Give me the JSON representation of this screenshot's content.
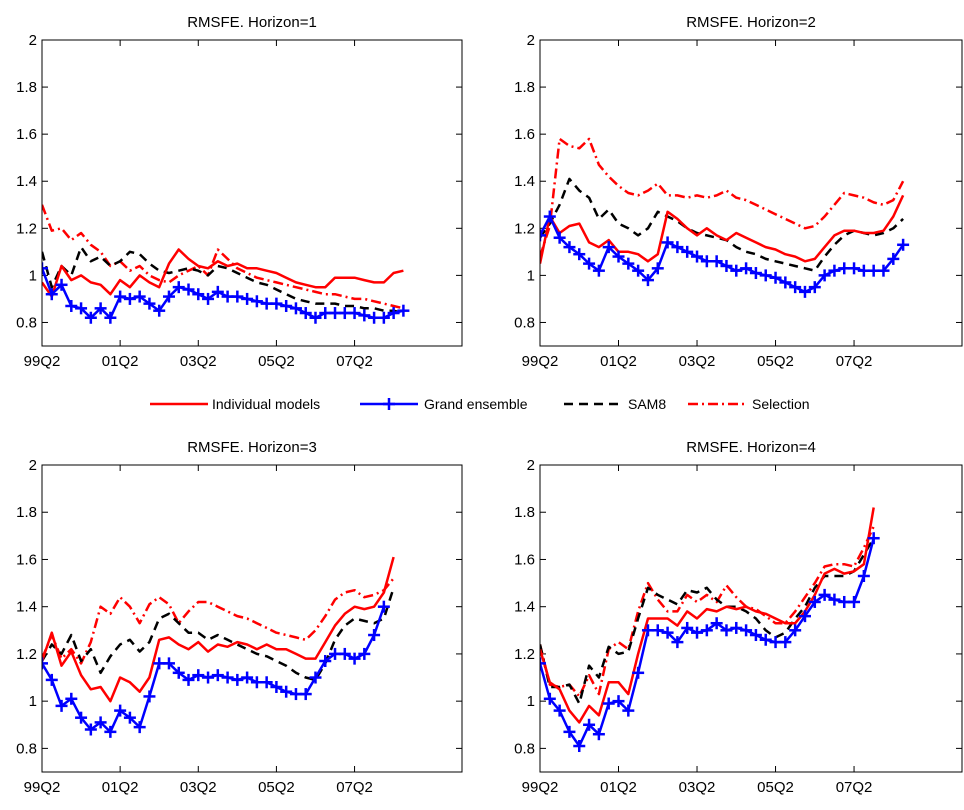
{
  "legend": {
    "items": [
      {
        "label": "Individual models",
        "color": "#ff0000",
        "style": "solid",
        "marker": "none"
      },
      {
        "label": "Grand ensemble",
        "color": "#0000ff",
        "style": "solid",
        "marker": "plus"
      },
      {
        "label": "SAM8",
        "color": "#000000",
        "style": "dashed",
        "marker": "none"
      },
      {
        "label": "Selection",
        "color": "#ff0000",
        "style": "dashdot",
        "marker": "none"
      }
    ]
  },
  "chart_data": [
    {
      "type": "line",
      "title": "RMSFE. Horizon=1",
      "xlabel": "",
      "ylabel": "",
      "xlim": [
        0,
        43
      ],
      "ylim": [
        0.7,
        2
      ],
      "yticks": [
        0.8,
        1,
        1.2,
        1.4,
        1.6,
        1.8,
        2
      ],
      "ytick_labels": [
        "0.8",
        "1",
        "1.2",
        "1.4",
        "1.6",
        "1.8",
        "2"
      ],
      "xticks": [
        0,
        8,
        16,
        24,
        32
      ],
      "xtick_labels": [
        "99Q2",
        "01Q2",
        "03Q2",
        "05Q2",
        "07Q2"
      ],
      "grid": false,
      "series": [
        {
          "name": "Individual models",
          "x_start": 0,
          "values": [
            0.97,
            0.91,
            1.04,
            0.98,
            1.0,
            0.97,
            0.96,
            0.92,
            0.98,
            0.95,
            1.0,
            0.97,
            0.95,
            1.05,
            1.11,
            1.07,
            1.04,
            1.03,
            1.06,
            1.04,
            1.05,
            1.03,
            1.03,
            1.02,
            1.01,
            0.99,
            0.97,
            0.96,
            0.95,
            0.95,
            0.99,
            0.99,
            0.99,
            0.98,
            0.97,
            0.97,
            1.01,
            1.02
          ]
        },
        {
          "name": "Grand ensemble",
          "x_start": 0,
          "values": [
            1.03,
            0.92,
            0.96,
            0.87,
            0.86,
            0.82,
            0.86,
            0.82,
            0.91,
            0.9,
            0.91,
            0.88,
            0.85,
            0.91,
            0.95,
            0.94,
            0.92,
            0.9,
            0.93,
            0.91,
            0.91,
            0.9,
            0.89,
            0.88,
            0.88,
            0.87,
            0.86,
            0.84,
            0.82,
            0.84,
            0.84,
            0.84,
            0.84,
            0.83,
            0.82,
            0.82,
            0.84,
            0.85
          ]
        },
        {
          "name": "SAM8",
          "x_start": 0,
          "values": [
            1.1,
            0.95,
            1.04,
            1.0,
            1.12,
            1.06,
            1.08,
            1.04,
            1.06,
            1.1,
            1.09,
            1.05,
            1.02,
            1.01,
            1.02,
            1.03,
            1.02,
            1.0,
            1.04,
            1.03,
            1.01,
            0.99,
            0.97,
            0.96,
            0.94,
            0.92,
            0.9,
            0.89,
            0.88,
            0.88,
            0.88,
            0.87,
            0.87,
            0.86,
            0.86,
            0.85,
            0.85,
            0.84
          ]
        },
        {
          "name": "Selection",
          "x_start": 0,
          "values": [
            1.3,
            1.19,
            1.2,
            1.15,
            1.18,
            1.13,
            1.1,
            1.04,
            1.06,
            1.02,
            1.04,
            1.0,
            0.98,
            0.97,
            1.0,
            1.02,
            1.04,
            1.0,
            1.11,
            1.07,
            1.03,
            1.01,
            0.99,
            0.98,
            0.97,
            0.96,
            0.95,
            0.94,
            0.93,
            0.92,
            0.92,
            0.91,
            0.9,
            0.9,
            0.89,
            0.88,
            0.87,
            0.86
          ]
        }
      ]
    },
    {
      "type": "line",
      "title": "RMSFE. Horizon=2",
      "xlabel": "",
      "ylabel": "",
      "xlim": [
        0,
        43
      ],
      "ylim": [
        0.7,
        2
      ],
      "yticks": [
        0.8,
        1,
        1.2,
        1.4,
        1.6,
        1.8,
        2
      ],
      "ytick_labels": [
        "0.8",
        "1",
        "1.2",
        "1.4",
        "1.6",
        "1.8",
        "2"
      ],
      "xticks": [
        0,
        8,
        16,
        24,
        32
      ],
      "xtick_labels": [
        "99Q2",
        "01Q2",
        "03Q2",
        "05Q2",
        "07Q2"
      ],
      "grid": false,
      "series": [
        {
          "name": "Individual models",
          "x_start": 0,
          "values": [
            1.05,
            1.25,
            1.18,
            1.21,
            1.22,
            1.14,
            1.12,
            1.15,
            1.1,
            1.1,
            1.09,
            1.06,
            1.09,
            1.27,
            1.24,
            1.2,
            1.17,
            1.2,
            1.17,
            1.15,
            1.18,
            1.16,
            1.14,
            1.12,
            1.11,
            1.09,
            1.08,
            1.06,
            1.07,
            1.12,
            1.17,
            1.19,
            1.19,
            1.18,
            1.18,
            1.19,
            1.25,
            1.34
          ]
        },
        {
          "name": "Grand ensemble",
          "x_start": 0,
          "values": [
            1.17,
            1.25,
            1.16,
            1.12,
            1.09,
            1.05,
            1.02,
            1.12,
            1.08,
            1.05,
            1.02,
            0.98,
            1.03,
            1.14,
            1.12,
            1.1,
            1.08,
            1.06,
            1.06,
            1.04,
            1.02,
            1.03,
            1.01,
            1.0,
            0.99,
            0.97,
            0.95,
            0.93,
            0.95,
            1.0,
            1.02,
            1.03,
            1.03,
            1.02,
            1.02,
            1.02,
            1.07,
            1.13
          ]
        },
        {
          "name": "SAM8",
          "x_start": 0,
          "values": [
            1.16,
            1.22,
            1.3,
            1.41,
            1.36,
            1.33,
            1.24,
            1.28,
            1.22,
            1.2,
            1.17,
            1.2,
            1.27,
            1.25,
            1.23,
            1.2,
            1.18,
            1.17,
            1.16,
            1.15,
            1.12,
            1.1,
            1.09,
            1.07,
            1.06,
            1.05,
            1.04,
            1.03,
            1.02,
            1.08,
            1.13,
            1.17,
            1.19,
            1.18,
            1.17,
            1.18,
            1.2,
            1.24
          ]
        },
        {
          "name": "Selection",
          "x_start": 0,
          "values": [
            1.08,
            1.21,
            1.58,
            1.55,
            1.54,
            1.58,
            1.47,
            1.42,
            1.38,
            1.35,
            1.34,
            1.36,
            1.39,
            1.34,
            1.34,
            1.33,
            1.34,
            1.33,
            1.34,
            1.36,
            1.33,
            1.32,
            1.3,
            1.28,
            1.26,
            1.24,
            1.22,
            1.2,
            1.21,
            1.25,
            1.3,
            1.35,
            1.34,
            1.33,
            1.31,
            1.3,
            1.32,
            1.4
          ]
        }
      ]
    },
    {
      "type": "line",
      "title": "RMSFE. Horizon=3",
      "xlabel": "",
      "ylabel": "",
      "xlim": [
        0,
        43
      ],
      "ylim": [
        0.7,
        2
      ],
      "yticks": [
        0.8,
        1,
        1.2,
        1.4,
        1.6,
        1.8,
        2
      ],
      "ytick_labels": [
        "0.8",
        "1",
        "1.2",
        "1.4",
        "1.6",
        "1.8",
        "2"
      ],
      "xticks": [
        0,
        8,
        16,
        24,
        32
      ],
      "xtick_labels": [
        "99Q2",
        "01Q2",
        "03Q2",
        "05Q2",
        "07Q2"
      ],
      "grid": false,
      "series": [
        {
          "name": "Individual models",
          "x_start": 0,
          "values": [
            1.17,
            1.29,
            1.15,
            1.21,
            1.11,
            1.05,
            1.06,
            1.0,
            1.1,
            1.08,
            1.04,
            1.1,
            1.26,
            1.27,
            1.24,
            1.22,
            1.25,
            1.21,
            1.24,
            1.23,
            1.25,
            1.24,
            1.22,
            1.24,
            1.22,
            1.22,
            1.2,
            1.18,
            1.18,
            1.25,
            1.32,
            1.37,
            1.4,
            1.39,
            1.4,
            1.46,
            1.61
          ]
        },
        {
          "name": "Grand ensemble",
          "x_start": 0,
          "values": [
            1.16,
            1.09,
            0.98,
            1.01,
            0.93,
            0.88,
            0.91,
            0.87,
            0.96,
            0.93,
            0.89,
            1.02,
            1.16,
            1.16,
            1.12,
            1.09,
            1.11,
            1.1,
            1.11,
            1.1,
            1.09,
            1.1,
            1.08,
            1.08,
            1.06,
            1.04,
            1.03,
            1.03,
            1.1,
            1.17,
            1.2,
            1.2,
            1.18,
            1.2,
            1.28,
            1.4
          ]
        },
        {
          "name": "SAM8",
          "x_start": 0,
          "values": [
            1.17,
            1.24,
            1.2,
            1.28,
            1.17,
            1.22,
            1.12,
            1.19,
            1.24,
            1.26,
            1.21,
            1.25,
            1.35,
            1.37,
            1.33,
            1.29,
            1.29,
            1.26,
            1.28,
            1.26,
            1.24,
            1.22,
            1.2,
            1.19,
            1.17,
            1.15,
            1.12,
            1.1,
            1.09,
            1.16,
            1.26,
            1.32,
            1.35,
            1.34,
            1.33,
            1.35,
            1.48
          ]
        },
        {
          "name": "Selection",
          "x_start": 0,
          "values": [
            1.18,
            1.28,
            1.18,
            1.22,
            1.16,
            1.25,
            1.4,
            1.37,
            1.44,
            1.4,
            1.33,
            1.41,
            1.44,
            1.41,
            1.33,
            1.38,
            1.42,
            1.42,
            1.4,
            1.38,
            1.36,
            1.35,
            1.33,
            1.31,
            1.29,
            1.28,
            1.27,
            1.26,
            1.3,
            1.36,
            1.43,
            1.46,
            1.47,
            1.44,
            1.45,
            1.47,
            1.52
          ]
        }
      ]
    },
    {
      "type": "line",
      "title": "RMSFE. Horizon=4",
      "xlabel": "",
      "ylabel": "",
      "xlim": [
        0,
        43
      ],
      "ylim": [
        0.7,
        2
      ],
      "yticks": [
        0.8,
        1,
        1.2,
        1.4,
        1.6,
        1.8,
        2
      ],
      "ytick_labels": [
        "0.8",
        "1",
        "1.2",
        "1.4",
        "1.6",
        "1.8",
        "2"
      ],
      "xticks": [
        0,
        8,
        16,
        24,
        32
      ],
      "xtick_labels": [
        "99Q2",
        "01Q2",
        "03Q2",
        "05Q2",
        "07Q2"
      ],
      "grid": false,
      "series": [
        {
          "name": "Individual models",
          "x_start": 0,
          "values": [
            1.22,
            1.08,
            1.05,
            0.96,
            0.91,
            0.98,
            0.94,
            1.08,
            1.08,
            1.03,
            1.2,
            1.35,
            1.35,
            1.35,
            1.32,
            1.38,
            1.35,
            1.39,
            1.38,
            1.4,
            1.39,
            1.4,
            1.38,
            1.37,
            1.35,
            1.33,
            1.33,
            1.38,
            1.45,
            1.54,
            1.56,
            1.54,
            1.55,
            1.58,
            1.82
          ]
        },
        {
          "name": "Grand ensemble",
          "x_start": 0,
          "values": [
            1.16,
            1.01,
            0.96,
            0.87,
            0.81,
            0.9,
            0.86,
            0.99,
            1.0,
            0.96,
            1.12,
            1.3,
            1.3,
            1.29,
            1.25,
            1.31,
            1.29,
            1.3,
            1.33,
            1.3,
            1.31,
            1.3,
            1.28,
            1.26,
            1.25,
            1.25,
            1.3,
            1.36,
            1.42,
            1.45,
            1.43,
            1.42,
            1.42,
            1.53,
            1.69
          ]
        },
        {
          "name": "SAM8",
          "x_start": 0,
          "values": [
            1.24,
            1.06,
            1.06,
            1.07,
            0.99,
            1.15,
            1.1,
            1.23,
            1.2,
            1.21,
            1.35,
            1.48,
            1.45,
            1.43,
            1.41,
            1.47,
            1.46,
            1.48,
            1.43,
            1.4,
            1.4,
            1.38,
            1.35,
            1.3,
            1.27,
            1.29,
            1.35,
            1.4,
            1.48,
            1.53,
            1.53,
            1.53,
            1.55,
            1.62,
            1.69
          ]
        },
        {
          "name": "Selection",
          "x_start": 0,
          "values": [
            1.24,
            1.07,
            1.06,
            1.07,
            1.02,
            1.11,
            1.03,
            1.22,
            1.25,
            1.22,
            1.38,
            1.5,
            1.43,
            1.38,
            1.38,
            1.45,
            1.42,
            1.45,
            1.42,
            1.49,
            1.44,
            1.4,
            1.39,
            1.36,
            1.33,
            1.33,
            1.38,
            1.44,
            1.5,
            1.57,
            1.58,
            1.58,
            1.57,
            1.65,
            1.74
          ]
        }
      ]
    }
  ]
}
